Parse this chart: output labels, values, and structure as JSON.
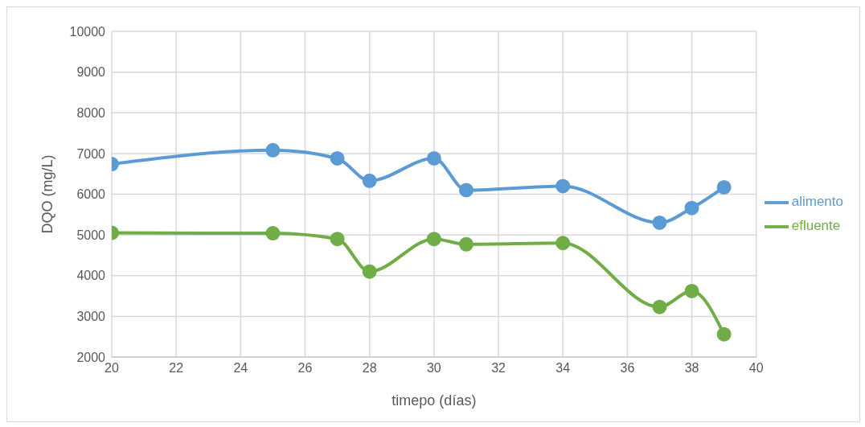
{
  "chart_data": {
    "type": "line",
    "xlabel": "timepo (días)",
    "ylabel": "DQO (mg/L)",
    "x": [
      20,
      25,
      27,
      28,
      30,
      31,
      34,
      37,
      38,
      39
    ],
    "series": [
      {
        "name": "alimento",
        "color": "#5b9bd5",
        "values": [
          6740,
          7080,
          6880,
          6330,
          6880,
          6100,
          6200,
          5300,
          5660,
          6170
        ]
      },
      {
        "name": "efluente",
        "color": "#70ad47",
        "values": [
          5050,
          5040,
          4900,
          4100,
          4900,
          4770,
          4800,
          3230,
          3620,
          2560
        ]
      }
    ],
    "xlim": [
      20,
      40
    ],
    "xticks": [
      20,
      22,
      24,
      26,
      28,
      30,
      32,
      34,
      36,
      38,
      40
    ],
    "ylim": [
      2000,
      10000
    ],
    "yticks": [
      2000,
      3000,
      4000,
      5000,
      6000,
      7000,
      8000,
      9000,
      10000
    ],
    "grid": true,
    "legend": "right",
    "marker": "circle",
    "line_style": "solid"
  }
}
